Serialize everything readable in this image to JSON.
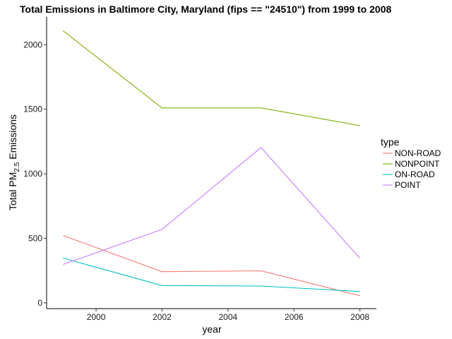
{
  "chart_data": {
    "type": "line",
    "title": "Total Emissions in Baltimore City, Maryland (fips == \"24510\") from 1999 to 2008",
    "xlabel": "year",
    "ylabel_prefix": "Total PM",
    "ylabel_subscript": "2.5",
    "ylabel_suffix": " Emissions",
    "x": [
      1999,
      2002,
      2005,
      2008
    ],
    "xlim": [
      1998.5,
      2008.5
    ],
    "ylim": [
      -45,
      2215
    ],
    "xticks": [
      2000,
      2002,
      2004,
      2006,
      2008
    ],
    "yticks": [
      0,
      500,
      1000,
      1500,
      2000
    ],
    "grid": false,
    "legend_title": "type",
    "legend_position": "right",
    "series": [
      {
        "name": "NON-ROAD",
        "color": "#F8766D",
        "values": [
          522,
          241,
          248,
          55
        ]
      },
      {
        "name": "NONPOINT",
        "color": "#7CAE00",
        "values": [
          2108,
          1510,
          1510,
          1373
        ]
      },
      {
        "name": "ON-ROAD",
        "color": "#00BFC4",
        "values": [
          347,
          134,
          130,
          88
        ]
      },
      {
        "name": "POINT",
        "color": "#C77CFF",
        "values": [
          297,
          569,
          1203,
          345
        ]
      }
    ]
  }
}
